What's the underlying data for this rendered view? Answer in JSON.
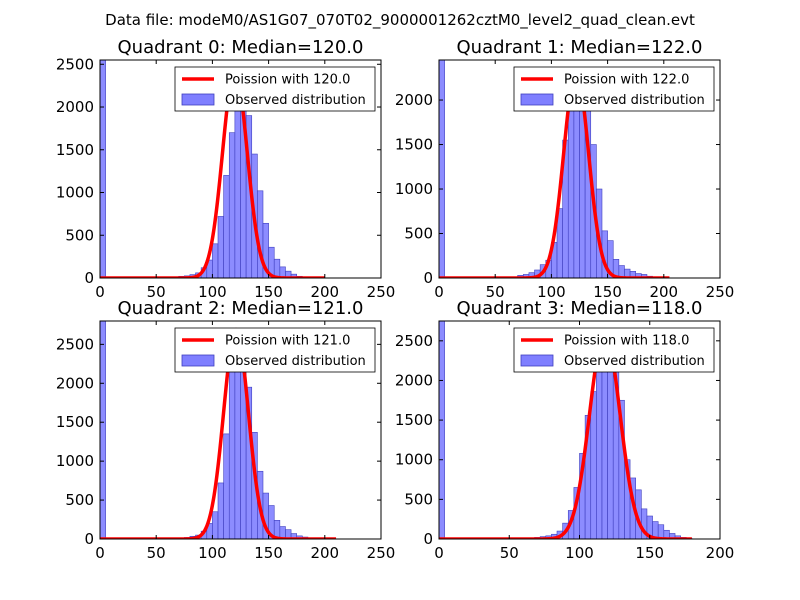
{
  "figure": {
    "suptitle": "Data file: modeM0/AS1G07_070T02_9000001262cztM0_level2_quad_clean.evt"
  },
  "colors": {
    "observed_fill": "#7f7fff",
    "observed_edge": "#3f3fbf",
    "poisson_line": "#ff0000",
    "axes": "#000000"
  },
  "chart_data": [
    {
      "type": "bar",
      "title": "Quadrant 0: Median=120.0",
      "xlim": [
        0,
        250
      ],
      "ylim": [
        0,
        2550
      ],
      "xticks": [
        0,
        50,
        100,
        150,
        200,
        250
      ],
      "yticks": [
        0,
        500,
        1000,
        1500,
        2000,
        2500
      ],
      "bin_width": 5,
      "histogram": {
        "name": "Observed distribution",
        "bins": [
          [
            0,
            2550
          ],
          [
            65,
            8
          ],
          [
            70,
            20
          ],
          [
            75,
            25
          ],
          [
            80,
            40
          ],
          [
            85,
            60
          ],
          [
            90,
            120
          ],
          [
            95,
            210
          ],
          [
            100,
            400
          ],
          [
            105,
            720
          ],
          [
            110,
            1200
          ],
          [
            115,
            1700
          ],
          [
            120,
            2150
          ],
          [
            125,
            2300
          ],
          [
            130,
            1900
          ],
          [
            135,
            1450
          ],
          [
            140,
            1020
          ],
          [
            145,
            640
          ],
          [
            150,
            360
          ],
          [
            155,
            220
          ],
          [
            160,
            130
          ],
          [
            165,
            80
          ],
          [
            170,
            45
          ],
          [
            175,
            20
          ],
          [
            180,
            10
          ],
          [
            185,
            5
          ],
          [
            190,
            3
          ]
        ]
      },
      "poisson": {
        "name": "Poission with 120.0",
        "mean": 120.0,
        "peak": 2430,
        "x_range": [
          0,
          200
        ]
      },
      "legend": {
        "location": "top-right"
      }
    },
    {
      "type": "bar",
      "title": "Quadrant 1: Median=122.0",
      "xlim": [
        0,
        250
      ],
      "ylim": [
        0,
        2450
      ],
      "xticks": [
        0,
        50,
        100,
        150,
        200,
        250
      ],
      "yticks": [
        0,
        500,
        1000,
        1500,
        2000
      ],
      "bin_width": 5,
      "histogram": {
        "name": "Observed distribution",
        "bins": [
          [
            0,
            2450
          ],
          [
            65,
            8
          ],
          [
            70,
            30
          ],
          [
            75,
            40
          ],
          [
            80,
            60
          ],
          [
            85,
            90
          ],
          [
            90,
            150
          ],
          [
            95,
            200
          ],
          [
            100,
            400
          ],
          [
            105,
            780
          ],
          [
            110,
            1550
          ],
          [
            115,
            2050
          ],
          [
            120,
            2250
          ],
          [
            125,
            2200
          ],
          [
            130,
            1950
          ],
          [
            135,
            1500
          ],
          [
            140,
            1000
          ],
          [
            145,
            530
          ],
          [
            150,
            420
          ],
          [
            155,
            210
          ],
          [
            160,
            140
          ],
          [
            165,
            100
          ],
          [
            170,
            75
          ],
          [
            175,
            50
          ],
          [
            180,
            40
          ],
          [
            185,
            20
          ],
          [
            190,
            12
          ],
          [
            195,
            5
          ],
          [
            200,
            3
          ]
        ]
      },
      "poisson": {
        "name": "Poission with 122.0",
        "mean": 122.0,
        "peak": 2320,
        "x_range": [
          0,
          205
        ]
      },
      "legend": {
        "location": "top-right"
      }
    },
    {
      "type": "bar",
      "title": "Quadrant 2: Median=121.0",
      "xlim": [
        0,
        250
      ],
      "ylim": [
        0,
        2800
      ],
      "xticks": [
        0,
        50,
        100,
        150,
        200,
        250
      ],
      "yticks": [
        0,
        500,
        1000,
        1500,
        2000,
        2500
      ],
      "bin_width": 5,
      "histogram": {
        "name": "Observed distribution",
        "bins": [
          [
            0,
            2800
          ],
          [
            65,
            5
          ],
          [
            70,
            12
          ],
          [
            75,
            20
          ],
          [
            80,
            35
          ],
          [
            85,
            50
          ],
          [
            90,
            100
          ],
          [
            95,
            200
          ],
          [
            100,
            350
          ],
          [
            105,
            720
          ],
          [
            110,
            1350
          ],
          [
            115,
            2150
          ],
          [
            120,
            2560
          ],
          [
            125,
            2520
          ],
          [
            130,
            1950
          ],
          [
            135,
            1370
          ],
          [
            140,
            870
          ],
          [
            145,
            590
          ],
          [
            150,
            430
          ],
          [
            155,
            240
          ],
          [
            160,
            160
          ],
          [
            165,
            120
          ],
          [
            170,
            70
          ],
          [
            175,
            40
          ],
          [
            180,
            25
          ],
          [
            185,
            10
          ],
          [
            190,
            6
          ],
          [
            195,
            3
          ],
          [
            200,
            2
          ],
          [
            205,
            1
          ]
        ]
      },
      "poisson": {
        "name": "Poission with 121.0",
        "mean": 121.0,
        "peak": 2690,
        "x_range": [
          0,
          210
        ]
      },
      "legend": {
        "location": "top-right"
      }
    },
    {
      "type": "bar",
      "title": "Quadrant 3: Median=118.0",
      "xlim": [
        0,
        200
      ],
      "ylim": [
        0,
        2750
      ],
      "xticks": [
        0,
        50,
        100,
        150,
        200
      ],
      "yticks": [
        0,
        500,
        1000,
        1500,
        2000,
        2500
      ],
      "bin_width": 4,
      "histogram": {
        "name": "Observed distribution",
        "bins": [
          [
            0,
            2750
          ],
          [
            56,
            4
          ],
          [
            60,
            8
          ],
          [
            64,
            14
          ],
          [
            68,
            20
          ],
          [
            72,
            30
          ],
          [
            76,
            40
          ],
          [
            80,
            60
          ],
          [
            84,
            100
          ],
          [
            88,
            200
          ],
          [
            92,
            360
          ],
          [
            96,
            650
          ],
          [
            100,
            1080
          ],
          [
            104,
            1560
          ],
          [
            108,
            1860
          ],
          [
            112,
            2140
          ],
          [
            116,
            2300
          ],
          [
            120,
            2280
          ],
          [
            124,
            2140
          ],
          [
            128,
            1750
          ],
          [
            132,
            1000
          ],
          [
            136,
            770
          ],
          [
            140,
            620
          ],
          [
            144,
            380
          ],
          [
            148,
            290
          ],
          [
            152,
            220
          ],
          [
            156,
            180
          ],
          [
            160,
            110
          ],
          [
            164,
            70
          ],
          [
            168,
            40
          ],
          [
            172,
            20
          ],
          [
            176,
            10
          ]
        ]
      },
      "poisson": {
        "name": "Poission with 118.0",
        "mean": 118.0,
        "peak": 2600,
        "x_range": [
          0,
          180
        ]
      },
      "legend": {
        "location": "top-right"
      }
    }
  ]
}
